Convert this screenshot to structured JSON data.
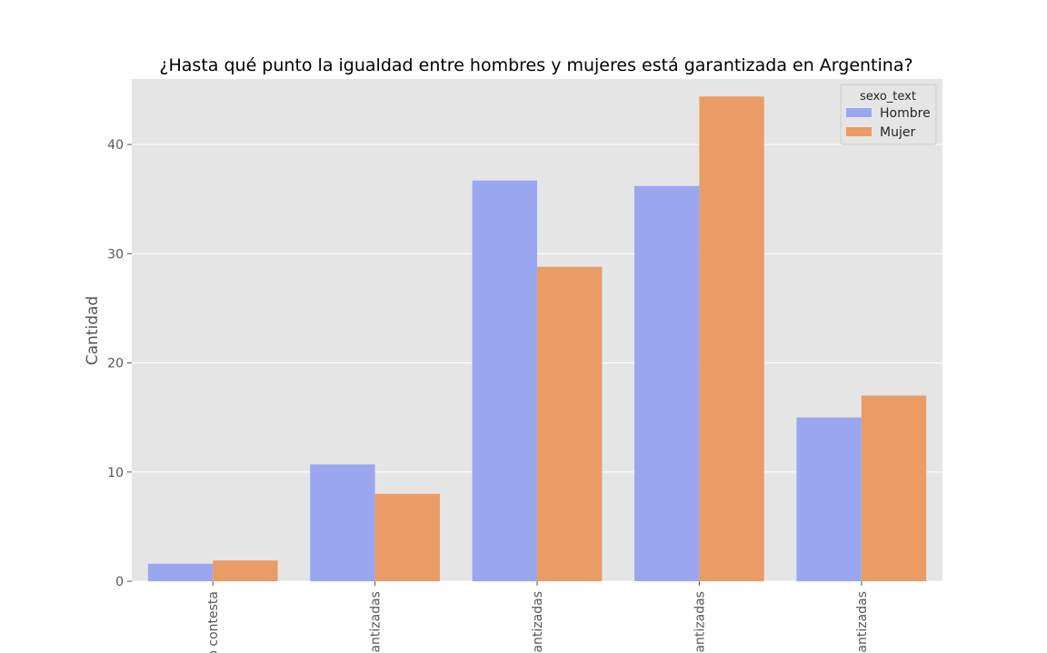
{
  "chart_data": {
    "type": "bar",
    "title": "¿Hasta qué punto la igualdad entre hombres y mujeres está garantizada en Argentina?",
    "xlabel": "",
    "ylabel": "Cantidad",
    "ylim": [
      0,
      46
    ],
    "yticks": [
      0,
      10,
      20,
      30,
      40
    ],
    "grid": true,
    "legend_placement": "top-right",
    "legend_title": "sexo_text",
    "category_labels_visible": [
      "o contesta",
      "antizadas",
      "antizadas",
      "antizadas",
      "antizadas"
    ],
    "series": [
      {
        "name": "Hombre",
        "color": "#9aa7f0",
        "values": [
          1.6,
          10.7,
          36.7,
          36.2,
          15.0
        ]
      },
      {
        "name": "Mujer",
        "color": "#e99c65",
        "values": [
          1.9,
          8.0,
          28.8,
          44.4,
          17.0
        ]
      }
    ],
    "background_color": "#e5e5e5",
    "grid_color": "#ffffff"
  }
}
